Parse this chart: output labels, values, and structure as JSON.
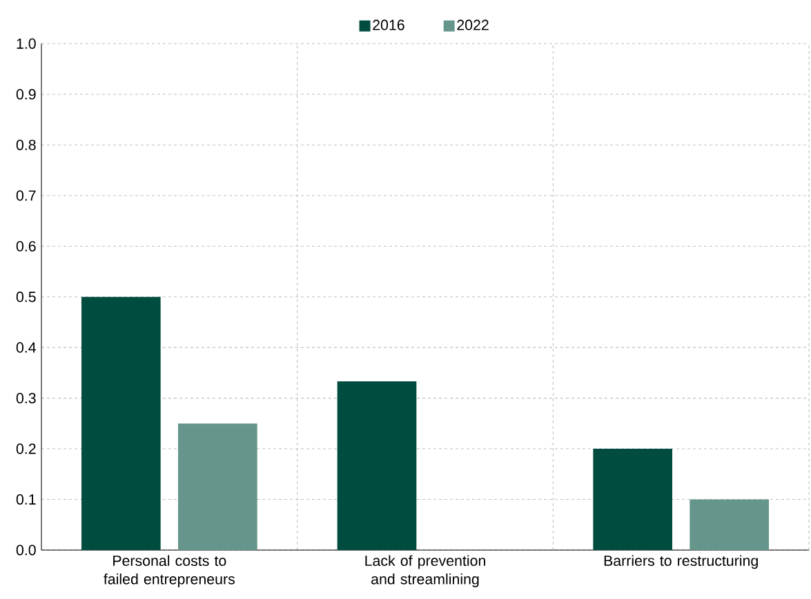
{
  "chart_data": {
    "type": "bar",
    "categories": [
      "Personal costs to failed entrepreneurs",
      "Lack of prevention and streamlining",
      "Barriers to restructuring"
    ],
    "series": [
      {
        "name": "2016",
        "color": "#004d40",
        "values": [
          0.5,
          0.333,
          0.2
        ]
      },
      {
        "name": "2022",
        "color": "#66958c",
        "values": [
          0.25,
          0,
          0.1
        ]
      }
    ],
    "ylim": [
      0,
      1
    ],
    "yticks": [
      {
        "value": 0,
        "label": "0.0"
      },
      0.1,
      0.2,
      0.3,
      0.4,
      0.5,
      0.6,
      0.7,
      0.8,
      0.9,
      {
        "value": 1,
        "label": "1.0"
      }
    ],
    "grid": true,
    "legend": "top"
  }
}
